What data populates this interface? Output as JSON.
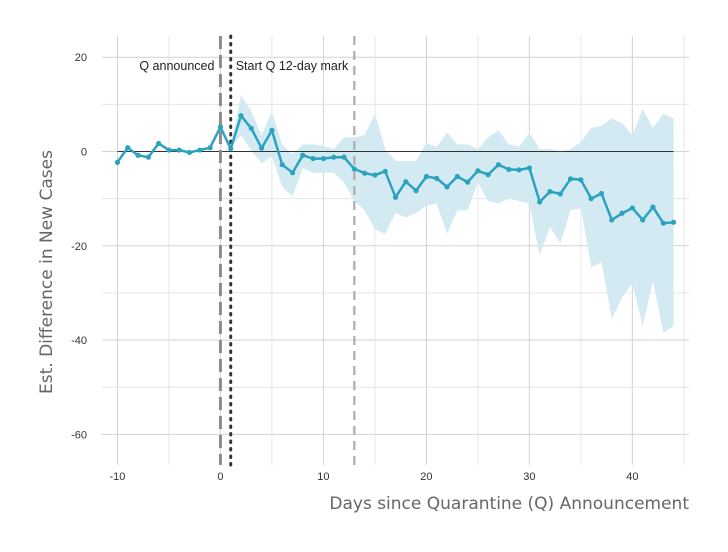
{
  "chart_data": {
    "type": "line",
    "title": "",
    "xlabel": "Days since Quarantine (Q) Announcement",
    "ylabel": "Est. Difference in New Cases",
    "xlim": [
      -11.5,
      45.5
    ],
    "ylim": [
      -66.5,
      24.5
    ],
    "xticks": [
      -10,
      0,
      10,
      20,
      30,
      40
    ],
    "yticks": [
      20,
      0,
      -20,
      -40,
      -60
    ],
    "grid": true,
    "zero_line": 0,
    "series": [
      {
        "name": "estimate",
        "color": "#2ba3bf",
        "band_color": "#d3eaf2",
        "x": [
          -10,
          -9,
          -8,
          -7,
          -6,
          -5,
          -4,
          -3,
          -2,
          -1,
          0,
          1,
          2,
          3,
          4,
          5,
          6,
          7,
          8,
          9,
          10,
          11,
          12,
          13,
          14,
          15,
          16,
          17,
          18,
          19,
          20,
          21,
          22,
          23,
          24,
          25,
          26,
          27,
          28,
          29,
          30,
          31,
          32,
          33,
          34,
          35,
          36,
          37,
          38,
          39,
          40,
          41,
          42,
          43,
          44
        ],
        "y": [
          -2.3,
          0.8,
          -0.8,
          -1.2,
          1.7,
          0.3,
          0.3,
          -0.2,
          0.3,
          0.8,
          5.2,
          0.6,
          7.6,
          4.9,
          0.7,
          4.5,
          -2.8,
          -4.5,
          -0.8,
          -1.5,
          -1.5,
          -1.2,
          -1.2,
          -3.7,
          -4.6,
          -5.0,
          -4.2,
          -9.7,
          -6.4,
          -8.3,
          -5.3,
          -5.7,
          -7.5,
          -5.3,
          -6.5,
          -4.1,
          -4.9,
          -2.8,
          -3.8,
          -3.9,
          -3.5,
          -10.7,
          -8.5,
          -9.0,
          -5.8,
          -6.0,
          -10.0,
          -8.9,
          -14.5,
          -13.1,
          -12.0,
          -14.5,
          -11.8,
          -15.2,
          -15.0
        ],
        "lower": [
          -2.3,
          0.8,
          -0.8,
          -1.2,
          1.7,
          0.3,
          0.3,
          -0.2,
          0.3,
          0.8,
          5.2,
          0.6,
          3.5,
          0.2,
          -2.5,
          -1.0,
          -7.5,
          -9.5,
          -3.5,
          -4.5,
          -4.5,
          -4.5,
          -6.5,
          -10.5,
          -12.5,
          -16.5,
          -17.5,
          -13.0,
          -14.0,
          -13.0,
          -11.5,
          -11.0,
          -17.5,
          -12.5,
          -12.5,
          -6.5,
          -10.5,
          -11.0,
          -10.0,
          -10.5,
          -11.0,
          -22.0,
          -16.0,
          -19.5,
          -12.5,
          -12.0,
          -24.5,
          -23.5,
          -35.5,
          -31.0,
          -28.0,
          -37.0,
          -27.5,
          -38.5,
          -37.0
        ],
        "upper": [
          -2.3,
          0.8,
          -0.8,
          -1.2,
          1.7,
          0.3,
          0.3,
          -0.2,
          0.3,
          0.8,
          5.2,
          0.6,
          12.0,
          8.5,
          3.5,
          8.5,
          1.5,
          -0.5,
          1.5,
          1.5,
          1.2,
          0.5,
          3.0,
          3.0,
          3.5,
          8.0,
          0.5,
          -2.0,
          -2.0,
          -2.0,
          1.8,
          1.0,
          4.0,
          1.5,
          1.5,
          0.5,
          3.0,
          4.5,
          1.5,
          1.0,
          4.0,
          0.5,
          0.5,
          0.0,
          0.5,
          2.0,
          5.0,
          5.5,
          7.0,
          6.0,
          3.5,
          9.0,
          5.0,
          8.0,
          7.0
        ]
      }
    ],
    "annotations": [
      {
        "x": 0,
        "label": "Q announced",
        "style": "longdash",
        "color": "#8c8c8c",
        "label_anchor": "end"
      },
      {
        "x": 1,
        "label": "Start Q",
        "style": "dotted",
        "color": "#333333",
        "label_anchor": "start"
      },
      {
        "x": 13,
        "label": "12-day mark",
        "style": "dashed",
        "color": "#b5b5b5",
        "label_anchor": "end"
      }
    ]
  }
}
